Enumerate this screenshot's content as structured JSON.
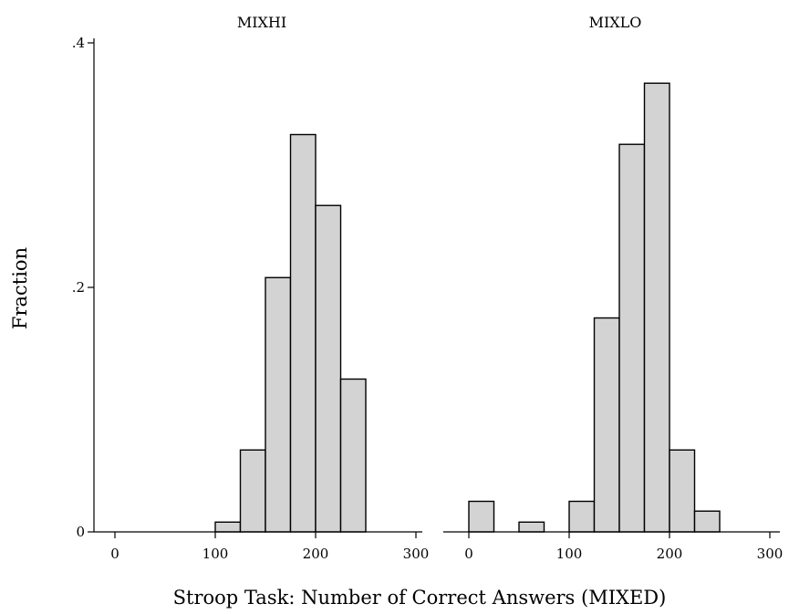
{
  "chart_data": {
    "type": "bar",
    "title": "",
    "xlabel": "Stroop Task: Number of Correct Answers (MIXED)",
    "ylabel": "Fraction",
    "ylim": [
      0,
      0.4
    ],
    "yticks": [
      0,
      0.2,
      0.4
    ],
    "ytick_labels": [
      "0",
      ".2",
      ".4"
    ],
    "xlim": [
      -25,
      315
    ],
    "xticks": [
      0,
      100,
      200,
      300
    ],
    "xtick_labels": [
      "0",
      "100",
      "200",
      "300"
    ],
    "bin_width": 25,
    "panels": [
      {
        "name": "MIXHI",
        "bins": [
          {
            "start": 100,
            "end": 125,
            "value": 0.008
          },
          {
            "start": 125,
            "end": 150,
            "value": 0.067
          },
          {
            "start": 150,
            "end": 175,
            "value": 0.208
          },
          {
            "start": 175,
            "end": 200,
            "value": 0.325
          },
          {
            "start": 200,
            "end": 225,
            "value": 0.267
          },
          {
            "start": 225,
            "end": 250,
            "value": 0.125
          }
        ]
      },
      {
        "name": "MIXLO",
        "bins": [
          {
            "start": 0,
            "end": 25,
            "value": 0.025
          },
          {
            "start": 50,
            "end": 75,
            "value": 0.008
          },
          {
            "start": 100,
            "end": 125,
            "value": 0.025
          },
          {
            "start": 125,
            "end": 150,
            "value": 0.175
          },
          {
            "start": 150,
            "end": 175,
            "value": 0.317
          },
          {
            "start": 175,
            "end": 200,
            "value": 0.367
          },
          {
            "start": 200,
            "end": 225,
            "value": 0.067
          },
          {
            "start": 225,
            "end": 250,
            "value": 0.017
          }
        ]
      }
    ],
    "grid": false,
    "legend": "none"
  }
}
